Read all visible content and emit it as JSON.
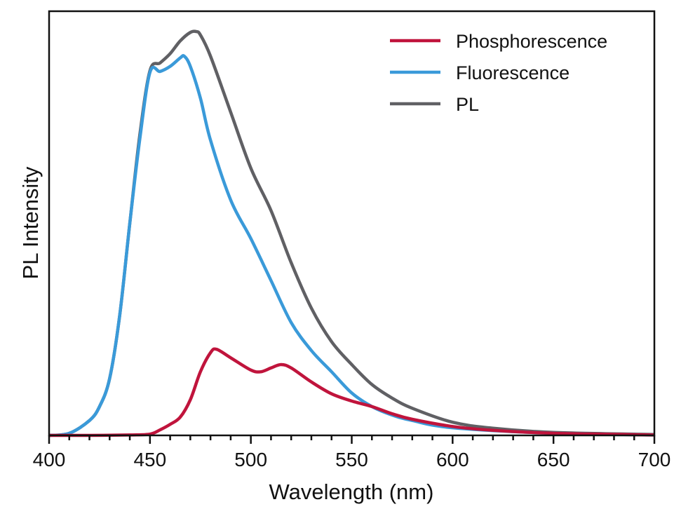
{
  "chart_data": {
    "type": "line",
    "title": "",
    "xlabel": "Wavelength (nm)",
    "ylabel": "PL Intensity",
    "xlim": [
      400,
      700
    ],
    "ylim": [
      0,
      1
    ],
    "x_ticks": [
      400,
      450,
      500,
      550,
      600,
      650,
      700
    ],
    "x_minor_step": 10,
    "y_ticks": [],
    "grid": false,
    "legend_position": "top-right",
    "series": [
      {
        "name": "Phosphorescence",
        "color": "#c0143c",
        "x": [
          400,
          420,
          440,
          450,
          455,
          460,
          465,
          470,
          475,
          480,
          483,
          490,
          500,
          505,
          510,
          515,
          520,
          530,
          540,
          550,
          560,
          570,
          580,
          600,
          620,
          650,
          700
        ],
        "y": [
          0,
          0,
          0.001,
          0.003,
          0.013,
          0.026,
          0.043,
          0.084,
          0.15,
          0.195,
          0.203,
          0.183,
          0.154,
          0.15,
          0.159,
          0.167,
          0.159,
          0.126,
          0.098,
          0.081,
          0.068,
          0.051,
          0.038,
          0.021,
          0.012,
          0.005,
          0.001
        ]
      },
      {
        "name": "Fluorescence",
        "color": "#3a9ad9",
        "x": [
          400,
          410,
          420,
          425,
          430,
          435,
          440,
          445,
          450,
          455,
          460,
          465,
          467,
          470,
          475,
          480,
          490,
          500,
          510,
          520,
          530,
          540,
          550,
          560,
          570,
          580,
          600,
          650,
          700
        ],
        "y": [
          0,
          0.005,
          0.035,
          0.068,
          0.134,
          0.283,
          0.5,
          0.7,
          0.856,
          0.858,
          0.87,
          0.89,
          0.894,
          0.87,
          0.795,
          0.696,
          0.555,
          0.464,
          0.365,
          0.266,
          0.2,
          0.15,
          0.1,
          0.068,
          0.048,
          0.035,
          0.018,
          0.005,
          0.001
        ]
      },
      {
        "name": "PL",
        "color": "#606064",
        "x": [
          400,
          410,
          420,
          425,
          430,
          435,
          440,
          445,
          450,
          455,
          460,
          465,
          470,
          473,
          475,
          480,
          490,
          500,
          510,
          520,
          530,
          540,
          550,
          560,
          570,
          580,
          600,
          620,
          650,
          700
        ],
        "y": [
          0,
          0.005,
          0.035,
          0.068,
          0.134,
          0.283,
          0.5,
          0.71,
          0.86,
          0.878,
          0.9,
          0.93,
          0.95,
          0.952,
          0.944,
          0.894,
          0.762,
          0.63,
          0.53,
          0.407,
          0.3,
          0.221,
          0.167,
          0.12,
          0.088,
          0.064,
          0.031,
          0.017,
          0.007,
          0.002
        ]
      }
    ]
  }
}
